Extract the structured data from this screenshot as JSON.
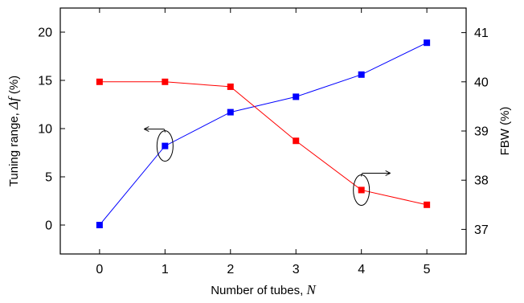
{
  "chart_data": {
    "type": "line",
    "x": [
      0,
      1,
      2,
      3,
      4,
      5
    ],
    "xlabel": "Number of tubes, ",
    "xlabel_var": "N",
    "xlim": [
      -0.6,
      5.6
    ],
    "xticks": [
      0,
      1,
      2,
      3,
      4,
      5
    ],
    "y_left": {
      "label": "Tuning range, ",
      "label_var": "Δf",
      "label_unit": " (%)",
      "lim": [
        -3,
        22.5
      ],
      "ticks": [
        0,
        5,
        10,
        15,
        20
      ]
    },
    "y_right": {
      "label": "FBW  (%)",
      "lim": [
        36.5,
        41.5
      ],
      "ticks": [
        37,
        38,
        39,
        40,
        41
      ]
    },
    "series": [
      {
        "axis": "left",
        "color": "#0000ff",
        "marker": "square",
        "values": [
          0,
          8.2,
          11.7,
          13.3,
          15.6,
          18.9
        ]
      },
      {
        "axis": "right",
        "color": "#ff0000",
        "marker": "square",
        "values": [
          40.0,
          40.0,
          39.9,
          38.8,
          37.8,
          37.5
        ]
      }
    ],
    "annotations": [
      {
        "type": "ellipse-arrow",
        "target_series": 0,
        "at_x": 1,
        "arrow_direction": "left"
      },
      {
        "type": "ellipse-arrow",
        "target_series": 1,
        "at_x": 4,
        "arrow_direction": "right"
      }
    ],
    "grid": false,
    "legend": "none"
  }
}
